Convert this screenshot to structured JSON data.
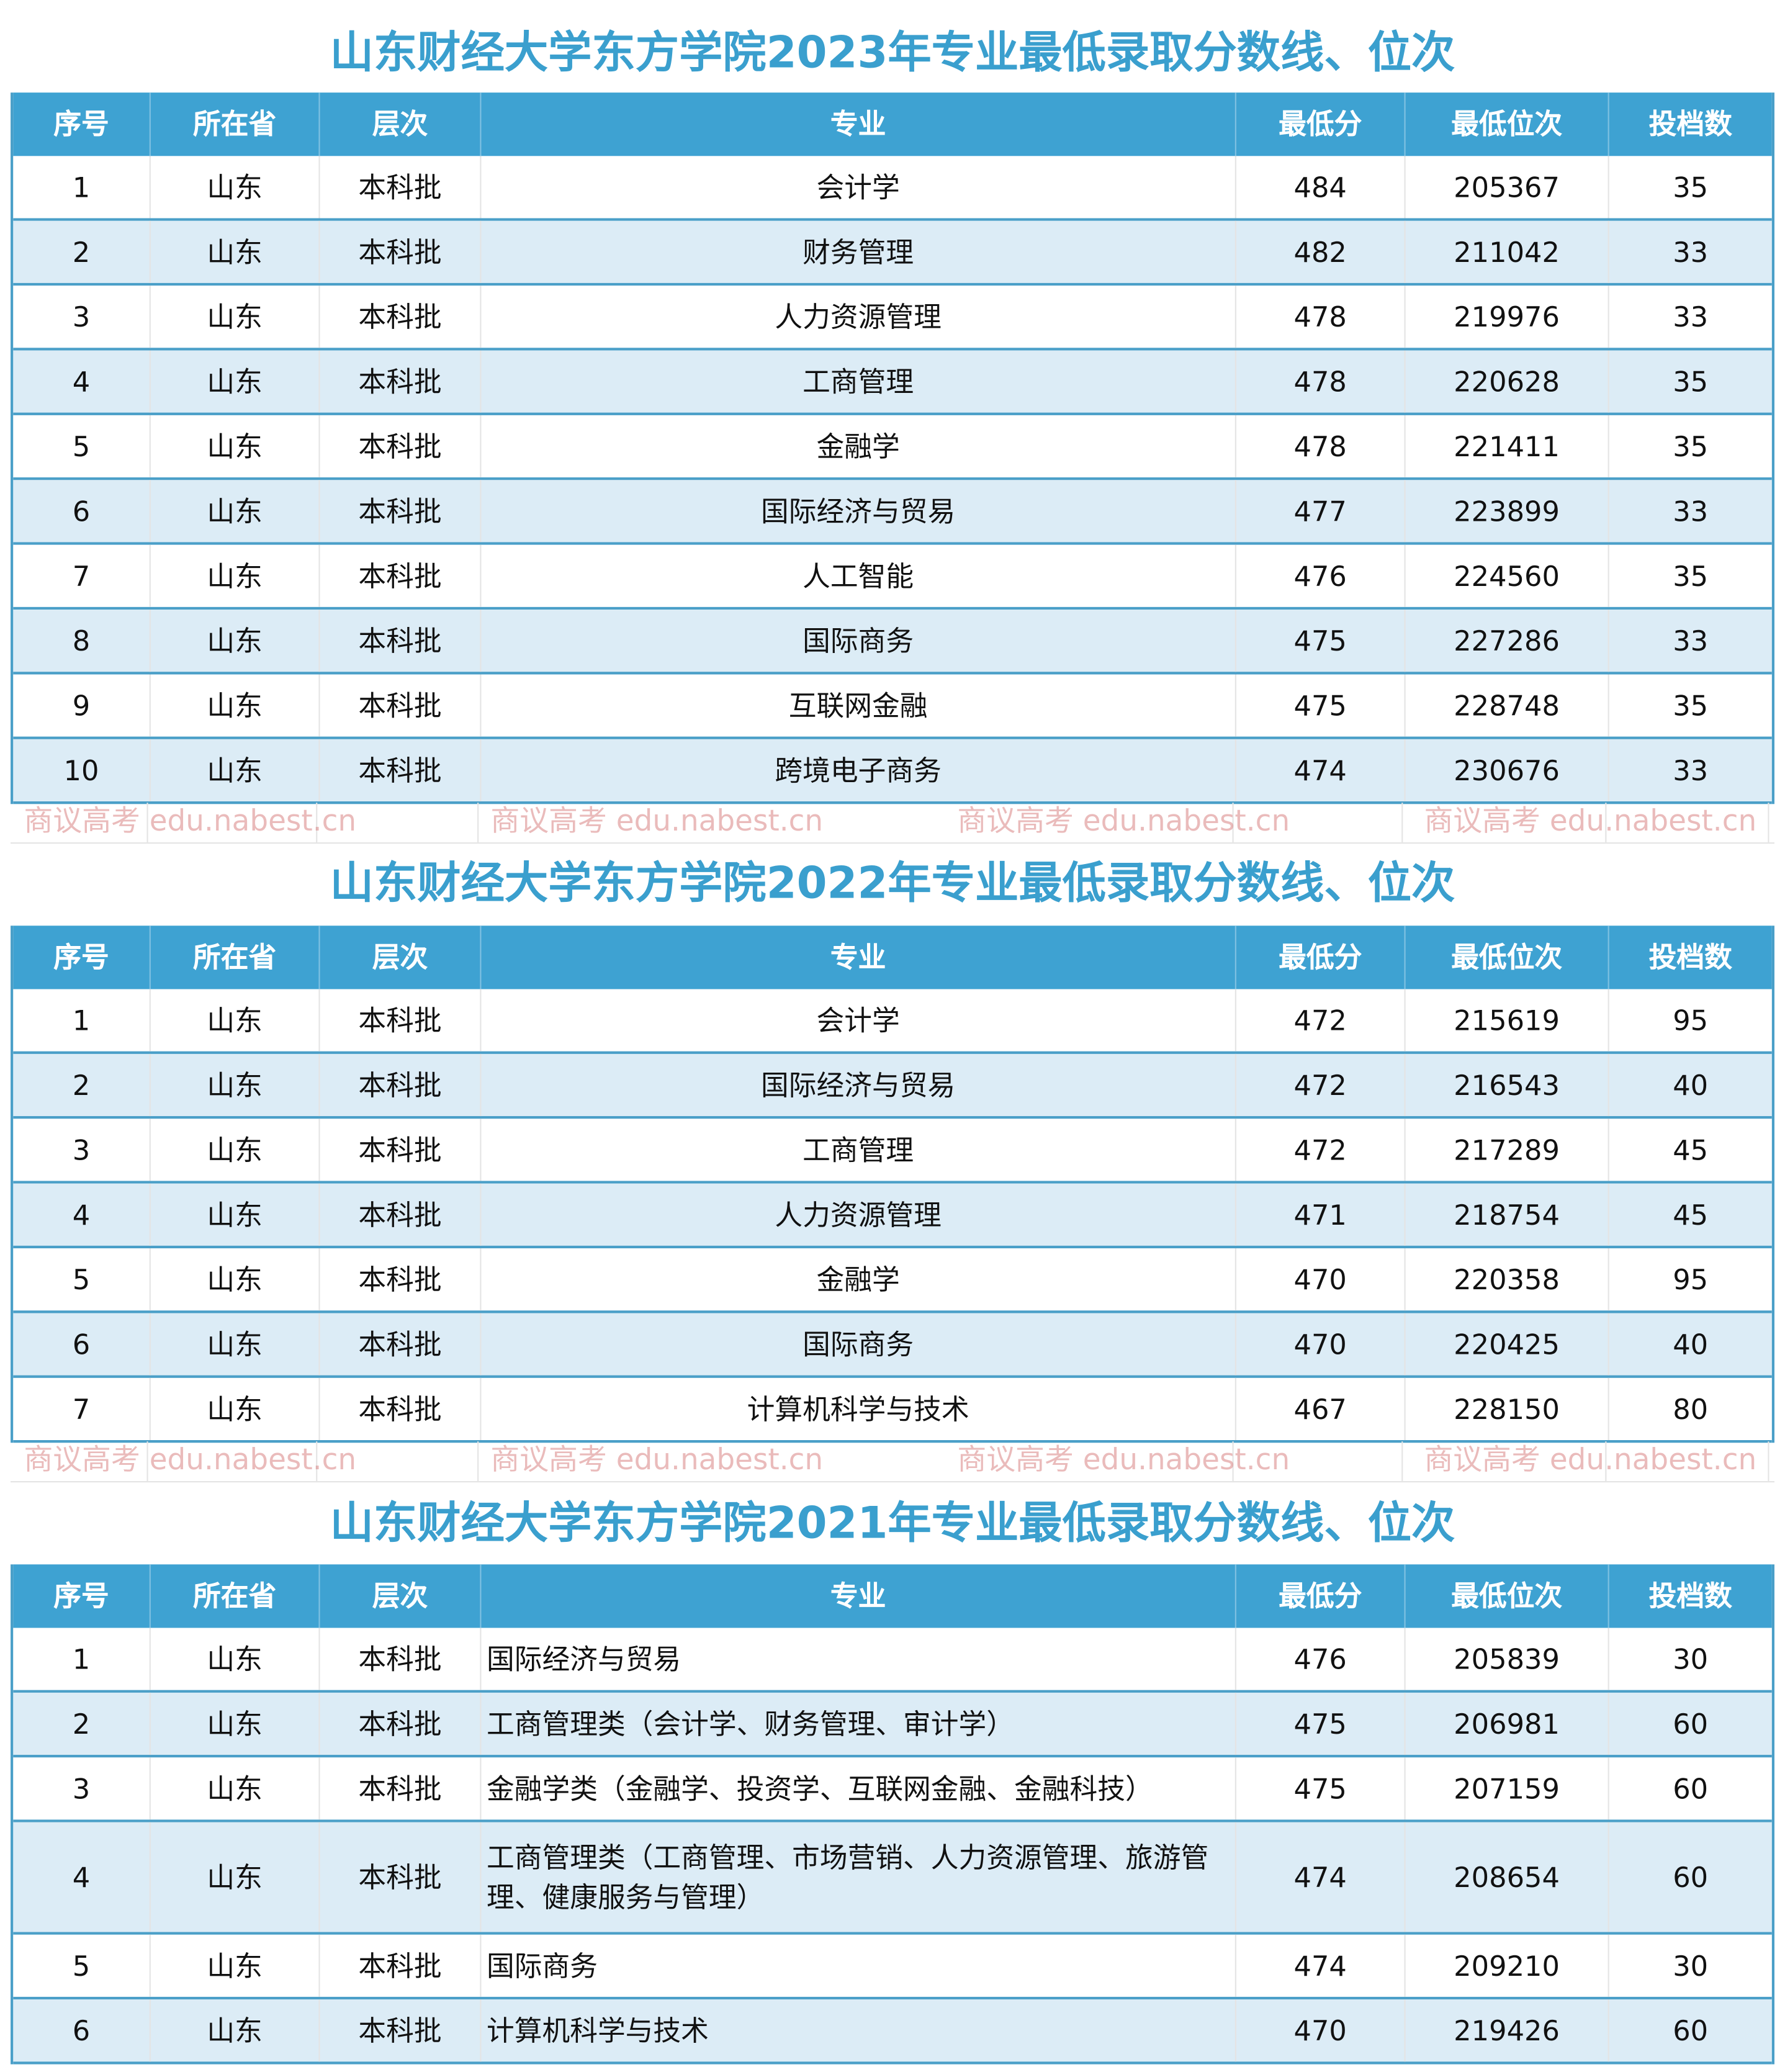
{
  "watermark": "商议高考 edu.nabest.cn",
  "colors": {
    "header_bg": "#3ea2d2",
    "title": "#3a9fce",
    "row_alt": "#dcecf6",
    "border": "#4a9fc8"
  },
  "headers": [
    "序号",
    "所在省",
    "层次",
    "专业",
    "最低分",
    "最低位次",
    "投档数"
  ],
  "tables": [
    {
      "title": "山东财经大学东方学院2023年专业最低录取分数线、位次",
      "rows": [
        [
          "1",
          "山东",
          "本科批",
          "会计学",
          "484",
          "205367",
          "35"
        ],
        [
          "2",
          "山东",
          "本科批",
          "财务管理",
          "482",
          "211042",
          "33"
        ],
        [
          "3",
          "山东",
          "本科批",
          "人力资源管理",
          "478",
          "219976",
          "33"
        ],
        [
          "4",
          "山东",
          "本科批",
          "工商管理",
          "478",
          "220628",
          "35"
        ],
        [
          "5",
          "山东",
          "本科批",
          "金融学",
          "478",
          "221411",
          "35"
        ],
        [
          "6",
          "山东",
          "本科批",
          "国际经济与贸易",
          "477",
          "223899",
          "33"
        ],
        [
          "7",
          "山东",
          "本科批",
          "人工智能",
          "476",
          "224560",
          "35"
        ],
        [
          "8",
          "山东",
          "本科批",
          "国际商务",
          "475",
          "227286",
          "33"
        ],
        [
          "9",
          "山东",
          "本科批",
          "互联网金融",
          "475",
          "228748",
          "35"
        ],
        [
          "10",
          "山东",
          "本科批",
          "跨境电子商务",
          "474",
          "230676",
          "33"
        ]
      ]
    },
    {
      "title": "山东财经大学东方学院2022年专业最低录取分数线、位次",
      "rows": [
        [
          "1",
          "山东",
          "本科批",
          "会计学",
          "472",
          "215619",
          "95"
        ],
        [
          "2",
          "山东",
          "本科批",
          "国际经济与贸易",
          "472",
          "216543",
          "40"
        ],
        [
          "3",
          "山东",
          "本科批",
          "工商管理",
          "472",
          "217289",
          "45"
        ],
        [
          "4",
          "山东",
          "本科批",
          "人力资源管理",
          "471",
          "218754",
          "45"
        ],
        [
          "5",
          "山东",
          "本科批",
          "金融学",
          "470",
          "220358",
          "95"
        ],
        [
          "6",
          "山东",
          "本科批",
          "国际商务",
          "470",
          "220425",
          "40"
        ],
        [
          "7",
          "山东",
          "本科批",
          "计算机科学与技术",
          "467",
          "228150",
          "80"
        ]
      ]
    },
    {
      "title": "山东财经大学东方学院2021年专业最低录取分数线、位次",
      "rows": [
        [
          "1",
          "山东",
          "本科批",
          "国际经济与贸易",
          "476",
          "205839",
          "30"
        ],
        [
          "2",
          "山东",
          "本科批",
          "工商管理类（会计学、财务管理、审计学）",
          "475",
          "206981",
          "60"
        ],
        [
          "3",
          "山东",
          "本科批",
          "金融学类（金融学、投资学、互联网金融、金融科技）",
          "475",
          "207159",
          "60"
        ],
        [
          "4",
          "山东",
          "本科批",
          "工商管理类（工商管理、市场营销、人力资源管理、旅游管理、健康服务与管理）",
          "474",
          "208654",
          "60"
        ],
        [
          "5",
          "山东",
          "本科批",
          "国际商务",
          "474",
          "209210",
          "30"
        ],
        [
          "6",
          "山东",
          "本科批",
          "计算机科学与技术",
          "470",
          "219426",
          "60"
        ]
      ]
    }
  ]
}
